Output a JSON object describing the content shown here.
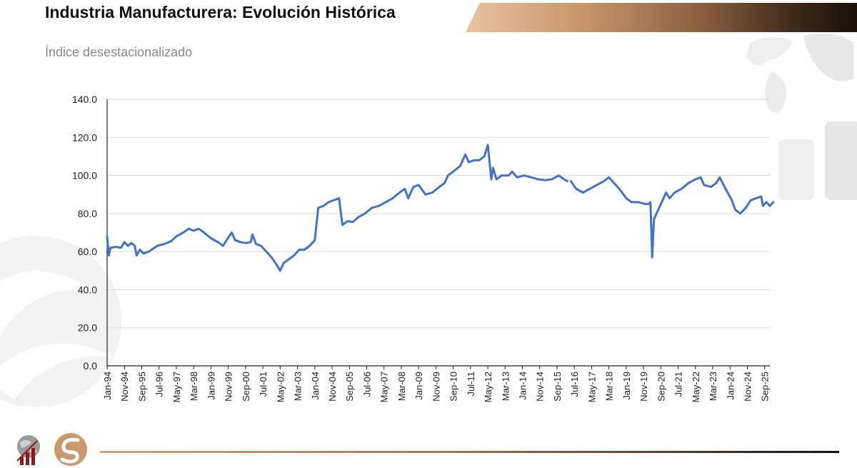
{
  "header": {
    "title": "Industria Manufacturera: Evolución Histórica",
    "subtitle": "Índice desestacionalizado"
  },
  "colors": {
    "series": "#4472c4",
    "grid": "#d9d9d9",
    "title": "#111111",
    "subtitle": "#8a8a8a"
  },
  "chart_data": {
    "type": "line",
    "title": "",
    "xlabel": "",
    "ylabel": "",
    "ylim": [
      0,
      140
    ],
    "y_ticks": [
      "0.0",
      "20.0",
      "40.0",
      "60.0",
      "80.0",
      "100.0",
      "120.0",
      "140.0"
    ],
    "x_tick_labels": [
      "Jan-94",
      "Nov-94",
      "Sep-95",
      "Jul-96",
      "May-97",
      "Mar-98",
      "Jan-99",
      "Nov-99",
      "Sep-00",
      "Jul-01",
      "May-02",
      "Mar-03",
      "Jan-04",
      "Nov-04",
      "Sep-05",
      "Jul-06",
      "May-07",
      "Mar-08",
      "Jan-09",
      "Nov-09",
      "Sep-10",
      "Jul-11",
      "May-12",
      "Mar-13",
      "Jan-14",
      "Nov-14",
      "Sep-15",
      "Jul-16",
      "May-17",
      "Mar-18",
      "Jan-19",
      "Nov-19",
      "Sep-20",
      "Jul-21",
      "May-22",
      "Mar-23",
      "Jan-24",
      "Nov-24",
      "Sep-25"
    ],
    "x_start": "1994-01",
    "x_end": "2025-12",
    "grid": "horizontal",
    "legend": "none",
    "series": [
      {
        "points": [
          [
            "1994-01",
            68
          ],
          [
            "1994-02",
            58
          ],
          [
            "1994-03",
            62
          ],
          [
            "1994-06",
            62.5
          ],
          [
            "1994-09",
            62
          ],
          [
            "1994-11",
            65
          ],
          [
            "1995-01",
            63
          ],
          [
            "1995-03",
            64.5
          ],
          [
            "1995-05",
            63
          ],
          [
            "1995-06",
            58
          ],
          [
            "1995-08",
            61
          ],
          [
            "1995-10",
            59
          ],
          [
            "1996-01",
            60
          ],
          [
            "1996-06",
            63
          ],
          [
            "1996-10",
            64
          ],
          [
            "1997-02",
            65.5
          ],
          [
            "1997-05",
            68
          ],
          [
            "1997-09",
            70
          ],
          [
            "1997-12",
            72
          ],
          [
            "1998-03",
            71
          ],
          [
            "1998-06",
            72
          ],
          [
            "1998-09",
            70
          ],
          [
            "1999-01",
            67
          ],
          [
            "1999-05",
            65
          ],
          [
            "1999-08",
            63
          ],
          [
            "1999-10",
            66
          ],
          [
            "2000-01",
            70
          ],
          [
            "2000-03",
            66
          ],
          [
            "2000-06",
            65
          ],
          [
            "2000-09",
            64.5
          ],
          [
            "2000-12",
            65
          ],
          [
            "2001-01",
            69
          ],
          [
            "2001-03",
            64
          ],
          [
            "2001-06",
            63
          ],
          [
            "2001-09",
            60
          ],
          [
            "2001-12",
            57
          ],
          [
            "2002-03",
            53
          ],
          [
            "2002-05",
            50
          ],
          [
            "2002-07",
            54
          ],
          [
            "2002-10",
            56
          ],
          [
            "2003-01",
            58
          ],
          [
            "2003-04",
            61
          ],
          [
            "2003-07",
            61
          ],
          [
            "2003-10",
            63
          ],
          [
            "2004-01",
            66
          ],
          [
            "2004-03",
            83
          ],
          [
            "2004-06",
            84
          ],
          [
            "2004-09",
            86
          ],
          [
            "2004-12",
            87
          ],
          [
            "2005-03",
            88
          ],
          [
            "2005-05",
            74
          ],
          [
            "2005-08",
            76
          ],
          [
            "2005-11",
            75.5
          ],
          [
            "2006-02",
            78
          ],
          [
            "2006-06",
            80
          ],
          [
            "2006-10",
            83
          ],
          [
            "2007-02",
            84
          ],
          [
            "2007-06",
            86
          ],
          [
            "2007-10",
            88
          ],
          [
            "2008-02",
            91
          ],
          [
            "2008-05",
            93
          ],
          [
            "2008-07",
            88
          ],
          [
            "2008-10",
            94
          ],
          [
            "2009-01",
            95
          ],
          [
            "2009-05",
            90
          ],
          [
            "2009-09",
            91
          ],
          [
            "2010-01",
            94
          ],
          [
            "2010-04",
            96
          ],
          [
            "2010-06",
            100
          ],
          [
            "2010-09",
            102
          ],
          [
            "2011-01",
            105
          ],
          [
            "2011-04",
            111
          ],
          [
            "2011-06",
            107
          ],
          [
            "2011-09",
            108
          ],
          [
            "2011-12",
            108
          ],
          [
            "2012-03",
            110
          ],
          [
            "2012-05",
            116
          ],
          [
            "2012-07",
            98
          ],
          [
            "2012-08",
            104
          ],
          [
            "2012-10",
            98
          ],
          [
            "2013-01",
            100
          ],
          [
            "2013-05",
            100
          ],
          [
            "2013-07",
            102
          ],
          [
            "2013-10",
            99
          ],
          [
            "2014-02",
            100
          ],
          [
            "2014-06",
            99
          ],
          [
            "2014-10",
            98
          ],
          [
            "2015-02",
            97.5
          ],
          [
            "2015-06",
            98
          ],
          [
            "2015-10",
            100
          ],
          [
            "2016-01",
            98
          ],
          [
            "2016-03",
            97
          ],
          null,
          [
            "2016-05",
            97
          ],
          [
            "2016-08",
            93
          ],
          [
            "2016-12",
            91
          ],
          [
            "2017-04",
            93
          ],
          [
            "2017-08",
            95
          ],
          [
            "2017-12",
            97
          ],
          [
            "2018-03",
            99
          ],
          [
            "2018-06",
            96
          ],
          [
            "2018-09",
            93
          ],
          [
            "2019-01",
            88
          ],
          [
            "2019-04",
            86
          ],
          [
            "2019-08",
            86
          ],
          [
            "2019-12",
            85
          ],
          [
            "2020-02",
            85
          ],
          [
            "2020-03",
            86
          ],
          [
            "2020-04",
            57
          ],
          [
            "2020-05",
            77
          ],
          [
            "2020-09",
            85
          ],
          [
            "2020-12",
            91
          ],
          [
            "2021-02",
            88
          ],
          [
            "2021-05",
            91
          ],
          [
            "2021-09",
            93
          ],
          [
            "2022-01",
            96
          ],
          [
            "2022-05",
            98
          ],
          [
            "2022-08",
            99
          ],
          [
            "2022-10",
            95
          ],
          [
            "2023-02",
            94
          ],
          [
            "2023-05",
            96
          ],
          [
            "2023-07",
            99
          ],
          [
            "2023-11",
            92
          ],
          [
            "2024-02",
            87
          ],
          [
            "2024-04",
            82
          ],
          [
            "2024-07",
            80
          ],
          [
            "2024-10",
            83
          ],
          [
            "2025-01",
            87
          ],
          [
            "2025-04",
            88
          ],
          [
            "2025-07",
            89
          ],
          [
            "2025-08",
            84
          ],
          [
            "2025-10",
            86
          ],
          [
            "2025-12",
            84
          ],
          [
            "2026-02",
            86
          ]
        ]
      }
    ]
  }
}
